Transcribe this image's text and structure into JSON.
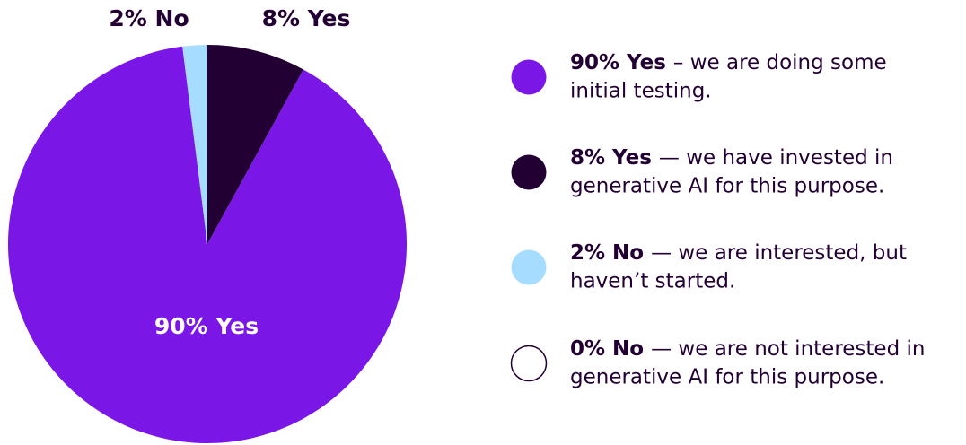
{
  "chart_data": {
    "type": "pie",
    "values": [
      90,
      8,
      2,
      0
    ],
    "value_labels": [
      "90% Yes",
      "8% Yes",
      "2% No",
      "0% No"
    ],
    "colors": [
      "#7a16e6",
      "#230033",
      "#a5dcff",
      "#ffffff"
    ],
    "descriptions": [
      [
        "– we are doing some",
        "initial testing."
      ],
      [
        "— we have invested in",
        "generative AI for this purpose."
      ],
      [
        "— we are interested, but",
        "haven’t started."
      ],
      [
        "— we are not interested in",
        "generative AI for this purpose."
      ]
    ]
  }
}
